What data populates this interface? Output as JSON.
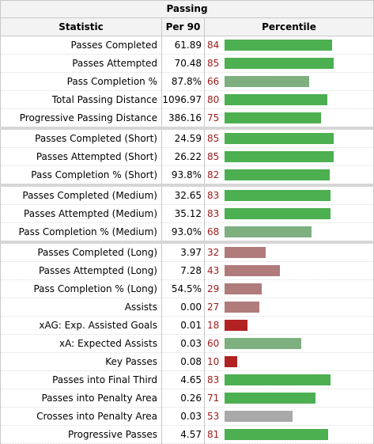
{
  "table": {
    "caption": "Passing",
    "headers": {
      "statistic": "Statistic",
      "per90": "Per 90",
      "percentile": "Percentile"
    },
    "rows": [
      {
        "stat": "Passes Completed",
        "per90": "61.89",
        "percentile": 84,
        "gap": false
      },
      {
        "stat": "Passes Attempted",
        "per90": "70.48",
        "percentile": 85,
        "gap": false
      },
      {
        "stat": "Pass Completion %",
        "per90": "87.8%",
        "percentile": 66,
        "gap": false
      },
      {
        "stat": "Total Passing Distance",
        "per90": "1096.97",
        "percentile": 80,
        "gap": false
      },
      {
        "stat": "Progressive Passing Distance",
        "per90": "386.16",
        "percentile": 75,
        "gap": false
      },
      {
        "stat": "Passes Completed (Short)",
        "per90": "24.59",
        "percentile": 85,
        "gap": true
      },
      {
        "stat": "Passes Attempted (Short)",
        "per90": "26.22",
        "percentile": 85,
        "gap": false
      },
      {
        "stat": "Pass Completion % (Short)",
        "per90": "93.8%",
        "percentile": 82,
        "gap": false
      },
      {
        "stat": "Passes Completed (Medium)",
        "per90": "32.65",
        "percentile": 83,
        "gap": true
      },
      {
        "stat": "Passes Attempted (Medium)",
        "per90": "35.12",
        "percentile": 83,
        "gap": false
      },
      {
        "stat": "Pass Completion % (Medium)",
        "per90": "93.0%",
        "percentile": 68,
        "gap": false
      },
      {
        "stat": "Passes Completed (Long)",
        "per90": "3.97",
        "percentile": 32,
        "gap": true
      },
      {
        "stat": "Passes Attempted (Long)",
        "per90": "7.28",
        "percentile": 43,
        "gap": false
      },
      {
        "stat": "Pass Completion % (Long)",
        "per90": "54.5%",
        "percentile": 29,
        "gap": false
      },
      {
        "stat": "Assists",
        "per90": "0.00",
        "percentile": 27,
        "gap": false
      },
      {
        "stat": "xAG: Exp. Assisted Goals",
        "per90": "0.01",
        "percentile": 18,
        "gap": false
      },
      {
        "stat": "xA: Expected Assists",
        "per90": "0.03",
        "percentile": 60,
        "gap": false
      },
      {
        "stat": "Key Passes",
        "per90": "0.08",
        "percentile": 10,
        "gap": false
      },
      {
        "stat": "Passes into Final Third",
        "per90": "4.65",
        "percentile": 83,
        "gap": false
      },
      {
        "stat": "Passes into Penalty Area",
        "per90": "0.26",
        "percentile": 71,
        "gap": false
      },
      {
        "stat": "Crosses into Penalty Area",
        "per90": "0.03",
        "percentile": 53,
        "gap": false
      },
      {
        "stat": "Progressive Passes",
        "per90": "4.57",
        "percentile": 81,
        "gap": false
      }
    ]
  },
  "colors": {
    "bar_high": "#4caf50",
    "bar_mid_high": "#7daf7f",
    "bar_mid": "#a9a9a9",
    "bar_mid_low": "#b07b7b",
    "bar_low": "#b22222",
    "percentile_text": "#a01c1c"
  }
}
